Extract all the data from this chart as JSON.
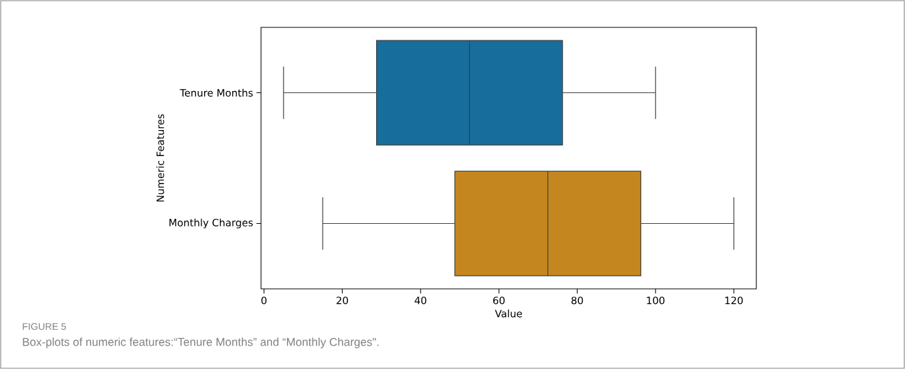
{
  "chart_data": {
    "type": "box",
    "orientation": "horizontal",
    "xlabel": "Value",
    "ylabel": "Numeric Features",
    "categories": [
      "Tenure Months",
      "Monthly Charges"
    ],
    "boxes": [
      {
        "low": 5,
        "q1": 28.75,
        "median": 52.5,
        "q3": 76.25,
        "high": 100
      },
      {
        "low": 15,
        "q1": 48.75,
        "median": 72.5,
        "q3": 96.25,
        "high": 120
      }
    ],
    "colors": [
      "#176d9c",
      "#c4871f"
    ],
    "xlim": [
      -0.75,
      125.75
    ],
    "xticks": [
      0,
      20,
      40,
      60,
      80,
      100,
      120
    ],
    "grid": false,
    "annotations": [
      "FIGURE 5",
      "Box-plots of numeric features:“Tenure Months” and “Monthly Charges\"."
    ]
  }
}
